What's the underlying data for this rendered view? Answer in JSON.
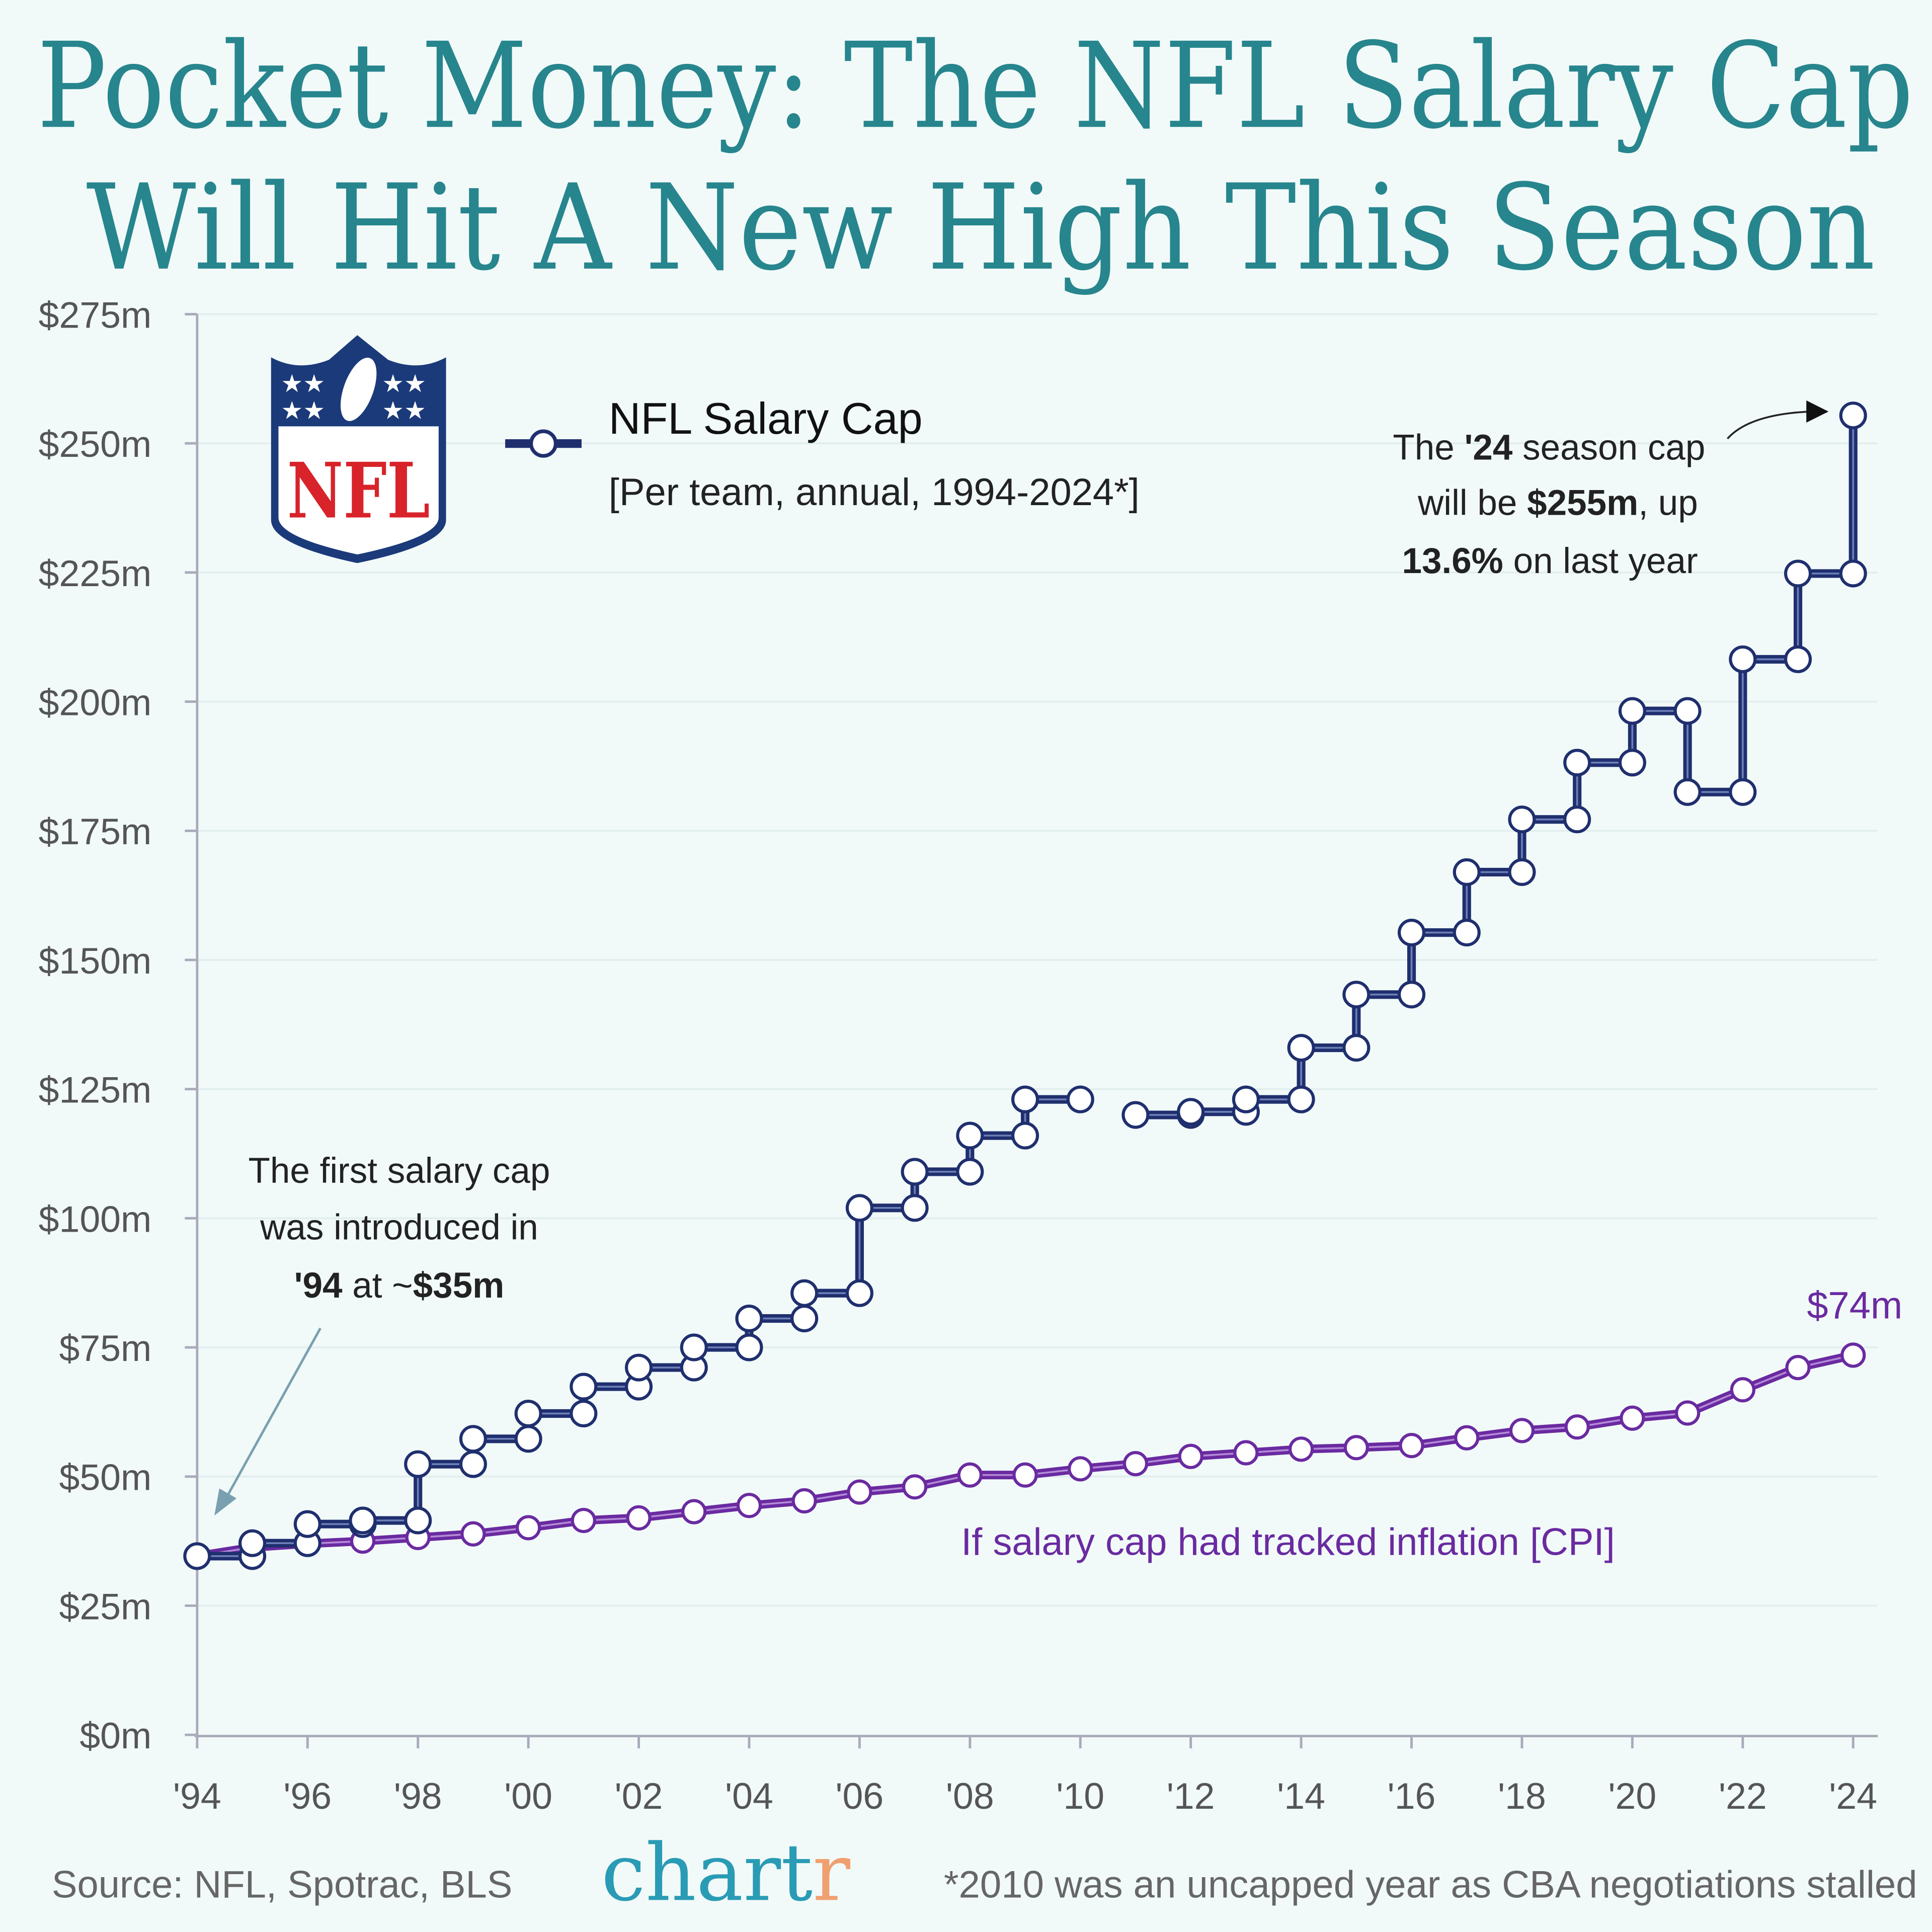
{
  "title": {
    "line1": "Pocket Money: The NFL Salary Cap",
    "line2": "Will Hit A New High This Season"
  },
  "legend": {
    "series_name": "NFL Salary Cap",
    "subtitle": "[Per team, annual, 1994-2024*]",
    "logo_text": "NFL"
  },
  "annotations": {
    "latest": {
      "l1a": "The ",
      "l1b": "'24",
      "l1c": " season cap",
      "l2a": "will be ",
      "l2b": "$255m",
      "l2c": ", up",
      "l3a": "13.6%",
      "l3b": " on last year"
    },
    "first": {
      "l1": "The first salary cap",
      "l2": "was introduced in",
      "l3a": "'94",
      "l3b": " at ~",
      "l3c": "$35m"
    },
    "cpi_label": "If salary cap had tracked inflation [CPI]",
    "cpi_end": "$74m"
  },
  "footer": {
    "source": "Source: NFL, Spotrac, BLS",
    "brand_a": "chart",
    "brand_b": "r",
    "note": "*2010 was an uncapped year as CBA negotiations stalled"
  },
  "colors": {
    "salary_cap": "#1f2f6e",
    "cpi": "#6a2aa0",
    "title": "#27858d",
    "brand": "#2a9bb5",
    "brand_accent": "#f0a070",
    "background": "#f1faf9"
  },
  "chart_data": {
    "type": "line",
    "step": true,
    "x": [
      1994,
      1995,
      1996,
      1997,
      1998,
      1999,
      2000,
      2001,
      2002,
      2003,
      2004,
      2005,
      2006,
      2007,
      2008,
      2009,
      2010,
      2011,
      2012,
      2013,
      2014,
      2015,
      2016,
      2017,
      2018,
      2019,
      2020,
      2021,
      2022,
      2023,
      2024
    ],
    "series": [
      {
        "name": "NFL Salary Cap",
        "color": "#1f2f6e",
        "values": [
          34.6,
          37.1,
          40.8,
          41.5,
          52.4,
          57.3,
          62.2,
          67.4,
          71.1,
          75.0,
          80.6,
          85.5,
          102.0,
          109.0,
          116.0,
          123.0,
          null,
          120.0,
          120.6,
          123.0,
          133.0,
          143.3,
          155.3,
          167.0,
          177.2,
          188.2,
          198.2,
          182.5,
          208.2,
          224.8,
          255.4
        ]
      },
      {
        "name": "If salary cap had tracked inflation [CPI]",
        "color": "#6a2aa0",
        "values": [
          34.6,
          36.3,
          37.0,
          37.5,
          38.2,
          38.9,
          40.1,
          41.5,
          42.0,
          43.2,
          44.4,
          45.3,
          47.0,
          48.0,
          50.3,
          50.3,
          51.5,
          52.5,
          53.9,
          54.6,
          55.3,
          55.6,
          56.0,
          57.5,
          58.9,
          59.6,
          61.3,
          62.3,
          66.8,
          71.1,
          73.5
        ]
      }
    ],
    "xlim": [
      1994,
      2024
    ],
    "ylim": [
      0,
      275
    ],
    "x_ticks": [
      "'94",
      "'96",
      "'98",
      "'00",
      "'02",
      "'04",
      "'06",
      "'08",
      "'10",
      "'12",
      "'14",
      "'16",
      "'18",
      "'20",
      "'22",
      "'24"
    ],
    "y_ticks": [
      "$0m",
      "$25m",
      "$50m",
      "$75m",
      "$100m",
      "$125m",
      "$150m",
      "$175m",
      "$200m",
      "$225m",
      "$250m",
      "$275m"
    ],
    "grid": "horizontal",
    "legend": "top-left"
  }
}
